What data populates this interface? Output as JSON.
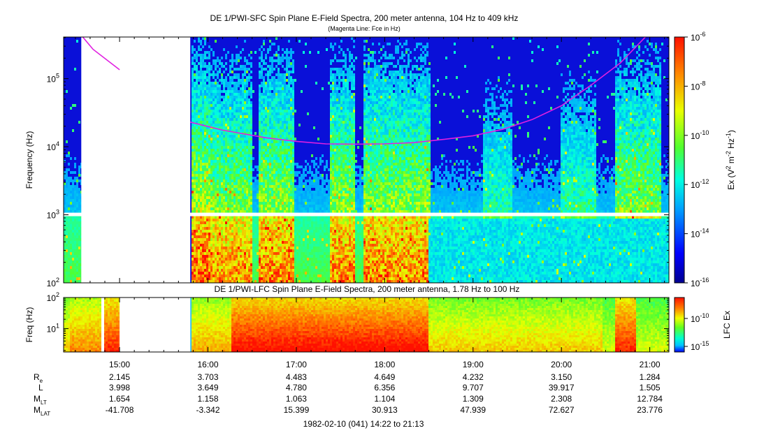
{
  "chart_data": [
    {
      "type": "heatmap",
      "title": "DE 1/PWI-SFC  Spin Plane E-Field Spectra, 200 meter antenna, 104 Hz to 409 kHz",
      "subtitle": "(Magenta Line: Fce in Hz)",
      "ylabel": "Frequency (Hz)",
      "yscale": "log",
      "ylim": [
        100,
        409000
      ],
      "y_ticks": [
        {
          "value": 100,
          "base": "10",
          "exp": "2"
        },
        {
          "value": 1000,
          "base": "10",
          "exp": "3"
        },
        {
          "value": 10000,
          "base": "10",
          "exp": "4"
        },
        {
          "value": 100000,
          "base": "10",
          "exp": "5"
        }
      ],
      "colorbar": {
        "label_parts": [
          "Ex (V",
          "2",
          " m",
          "-2",
          " Hz",
          "-1",
          ")"
        ],
        "scale": "log",
        "range": [
          1e-16,
          1e-06
        ],
        "ticks": [
          {
            "value": 1e-06,
            "base": "10",
            "exp": "-6"
          },
          {
            "value": 1e-08,
            "base": "10",
            "exp": "-8"
          },
          {
            "value": 1e-10,
            "base": "10",
            "exp": "-10"
          },
          {
            "value": 1e-12,
            "base": "10",
            "exp": "-12"
          },
          {
            "value": 1e-14,
            "base": "10",
            "exp": "-14"
          },
          {
            "value": 1e-16,
            "base": "10",
            "exp": "-16"
          }
        ]
      },
      "data_gap": {
        "from": "14:34",
        "to": "15:48"
      },
      "series": [
        {
          "name": "Fce",
          "color": "#e020e0",
          "segments": [
            {
              "x": [
                "14:35",
                "14:42",
                "15:00"
              ],
              "y": [
                409000,
                270000,
                135000
              ]
            },
            {
              "x": [
                "15:48",
                "16:10",
                "16:40",
                "17:00",
                "17:20",
                "17:40",
                "18:00",
                "18:20",
                "18:40",
                "19:00",
                "19:20",
                "19:40",
                "20:00",
                "20:20",
                "20:40",
                "20:57"
              ],
              "y": [
                23000,
                17500,
                13500,
                12000,
                11000,
                10900,
                11000,
                11500,
                12800,
                14500,
                18000,
                25000,
                40000,
                80000,
                170000,
                409000
              ]
            }
          ]
        }
      ]
    },
    {
      "type": "heatmap",
      "title": "DE 1/PWI-LFC  Spin Plane E-Field Spectra, 200 meter antenna, 1.78 Hz to 100 Hz",
      "ylabel": "Freq (Hz)",
      "yscale": "log",
      "ylim": [
        1.78,
        100
      ],
      "y_ticks": [
        {
          "value": 10,
          "base": "10",
          "exp": "1"
        },
        {
          "value": 100,
          "base": "10",
          "exp": "2"
        }
      ],
      "colorbar": {
        "label": "LFC Ex",
        "scale": "log",
        "ticks": [
          {
            "value": 1e-10,
            "base": "10",
            "exp": "-10"
          },
          {
            "value": 1e-15,
            "base": "10",
            "exp": "-15"
          }
        ]
      },
      "data_gap": {
        "from": "15:00",
        "to": "15:48"
      }
    }
  ],
  "x_axis": {
    "range": [
      "14:22",
      "21:13"
    ],
    "ticks": [
      "15:00",
      "16:00",
      "17:00",
      "18:00",
      "19:00",
      "20:00",
      "21:00"
    ]
  },
  "ephemeris": {
    "rows": [
      {
        "label": "R",
        "sub": "e",
        "values": [
          "2.145",
          "3.703",
          "4.483",
          "4.649",
          "4.232",
          "3.150",
          "1.284"
        ]
      },
      {
        "label": "L",
        "sub": "",
        "values": [
          "3.998",
          "3.649",
          "4.780",
          "6.356",
          "9.707",
          "39.917",
          "1.505"
        ]
      },
      {
        "label": "M",
        "sub": "LT",
        "values": [
          "1.654",
          "1.158",
          "1.063",
          "1.104",
          "1.309",
          "2.308",
          "12.784"
        ]
      },
      {
        "label": "M",
        "sub": "LAT",
        "values": [
          "-41.708",
          "-3.342",
          "15.399",
          "30.913",
          "47.939",
          "72.627",
          "23.776"
        ]
      }
    ]
  },
  "footer": "1982-02-10 (041) 14:22 to 21:13"
}
